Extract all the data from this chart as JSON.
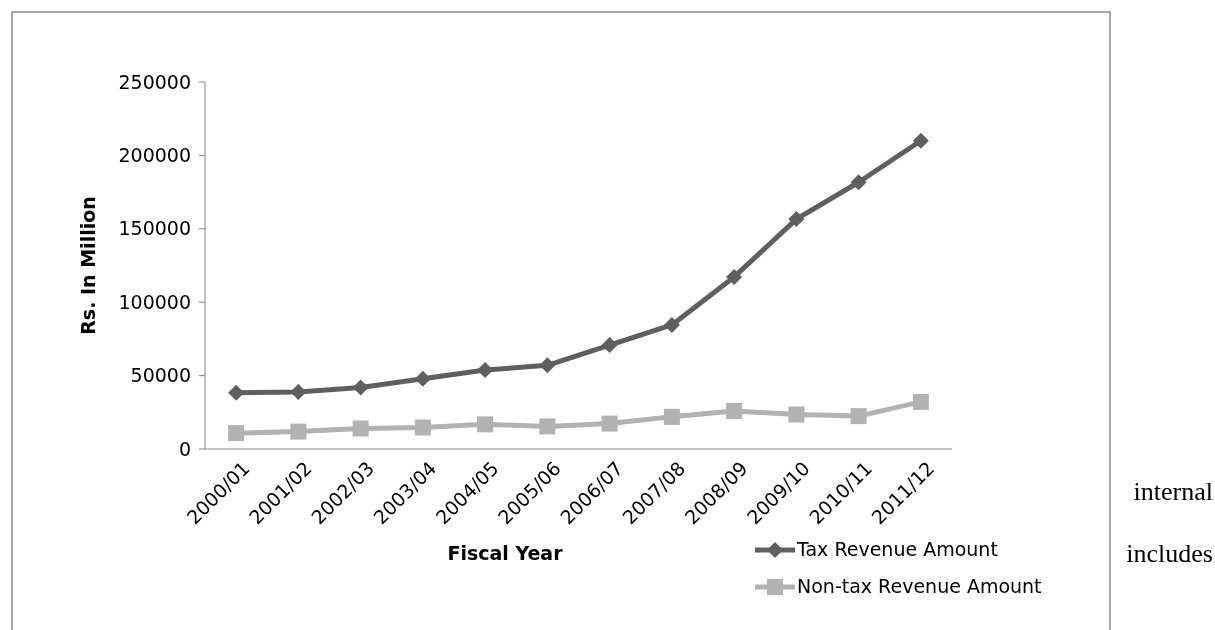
{
  "chart_data": {
    "type": "line",
    "xlabel": "Fiscal Year",
    "ylabel": "Rs. In Million",
    "categories": [
      "2000/01",
      "2001/02",
      "2002/03",
      "2003/04",
      "2004/05",
      "2005/06",
      "2006/07",
      "2007/08",
      "2008/09",
      "2009/10",
      "2010/11",
      "2011/12"
    ],
    "series": [
      {
        "name": "Tax Revenue Amount",
        "color": "#5f5f5f",
        "marker": "diamond",
        "values": [
          38400,
          38900,
          41900,
          47800,
          53800,
          57000,
          70800,
          84500,
          117200,
          156600,
          181700,
          210000
        ]
      },
      {
        "name": "Non-tax Revenue Amount",
        "color": "#b2b2b2",
        "marker": "square",
        "values": [
          10800,
          11900,
          14000,
          14600,
          16800,
          15400,
          17300,
          21900,
          25900,
          23500,
          22400,
          32100
        ]
      }
    ],
    "ylim": [
      0,
      250000
    ],
    "yticks": [
      0,
      50000,
      100000,
      150000,
      200000,
      250000
    ],
    "grid": false,
    "legend": "bottom right",
    "annotations": [
      "internal",
      "includes"
    ]
  }
}
